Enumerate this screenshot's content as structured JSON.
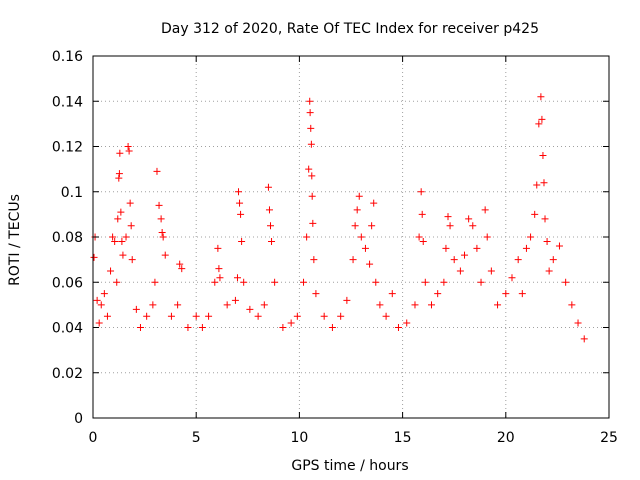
{
  "chart_data": {
    "type": "scatter",
    "title": "Day 312 of 2020, Rate Of TEC Index for receiver p425",
    "xlabel": "GPS time / hours",
    "ylabel": "ROTI / TECUs",
    "xlim": [
      0,
      25
    ],
    "ylim": [
      0,
      0.16
    ],
    "xticks": [
      "0",
      "5",
      "10",
      "15",
      "20",
      "25"
    ],
    "yticks": [
      "0",
      "0.02",
      "0.04",
      "0.06",
      "0.08",
      "0.1",
      "0.12",
      "0.14",
      "0.16"
    ],
    "grid": true,
    "marker": "plus",
    "series": [
      {
        "color": "#ff0000",
        "points": [
          [
            0.05,
            0.071
          ],
          [
            0.1,
            0.08
          ],
          [
            0.2,
            0.052
          ],
          [
            0.3,
            0.042
          ],
          [
            0.4,
            0.05
          ],
          [
            0.55,
            0.055
          ],
          [
            0.7,
            0.045
          ],
          [
            0.85,
            0.065
          ],
          [
            0.95,
            0.08
          ],
          [
            1.05,
            0.078
          ],
          [
            1.15,
            0.06
          ],
          [
            1.2,
            0.088
          ],
          [
            1.25,
            0.106
          ],
          [
            1.28,
            0.108
          ],
          [
            1.3,
            0.117
          ],
          [
            1.35,
            0.091
          ],
          [
            1.4,
            0.078
          ],
          [
            1.45,
            0.072
          ],
          [
            1.6,
            0.08
          ],
          [
            1.7,
            0.12
          ],
          [
            1.75,
            0.118
          ],
          [
            1.8,
            0.095
          ],
          [
            1.85,
            0.085
          ],
          [
            1.9,
            0.07
          ],
          [
            2.1,
            0.048
          ],
          [
            2.3,
            0.04
          ],
          [
            2.6,
            0.045
          ],
          [
            2.9,
            0.05
          ],
          [
            3.0,
            0.06
          ],
          [
            3.1,
            0.109
          ],
          [
            3.2,
            0.094
          ],
          [
            3.3,
            0.088
          ],
          [
            3.35,
            0.082
          ],
          [
            3.4,
            0.08
          ],
          [
            3.5,
            0.072
          ],
          [
            3.8,
            0.045
          ],
          [
            4.1,
            0.05
          ],
          [
            4.2,
            0.068
          ],
          [
            4.3,
            0.066
          ],
          [
            4.6,
            0.04
          ],
          [
            5.0,
            0.045
          ],
          [
            5.3,
            0.04
          ],
          [
            5.6,
            0.045
          ],
          [
            5.9,
            0.06
          ],
          [
            6.05,
            0.075
          ],
          [
            6.1,
            0.066
          ],
          [
            6.15,
            0.062
          ],
          [
            6.5,
            0.05
          ],
          [
            6.9,
            0.052
          ],
          [
            7.0,
            0.062
          ],
          [
            7.05,
            0.1
          ],
          [
            7.1,
            0.095
          ],
          [
            7.15,
            0.09
          ],
          [
            7.2,
            0.078
          ],
          [
            7.3,
            0.06
          ],
          [
            7.6,
            0.048
          ],
          [
            8.0,
            0.045
          ],
          [
            8.3,
            0.05
          ],
          [
            8.5,
            0.102
          ],
          [
            8.55,
            0.092
          ],
          [
            8.6,
            0.085
          ],
          [
            8.65,
            0.078
          ],
          [
            8.8,
            0.06
          ],
          [
            9.2,
            0.04
          ],
          [
            9.6,
            0.042
          ],
          [
            9.9,
            0.045
          ],
          [
            10.2,
            0.06
          ],
          [
            10.35,
            0.08
          ],
          [
            10.45,
            0.11
          ],
          [
            10.5,
            0.14
          ],
          [
            10.52,
            0.135
          ],
          [
            10.55,
            0.128
          ],
          [
            10.58,
            0.121
          ],
          [
            10.6,
            0.107
          ],
          [
            10.62,
            0.098
          ],
          [
            10.65,
            0.086
          ],
          [
            10.7,
            0.07
          ],
          [
            10.8,
            0.055
          ],
          [
            11.2,
            0.045
          ],
          [
            11.6,
            0.04
          ],
          [
            12.0,
            0.045
          ],
          [
            12.3,
            0.052
          ],
          [
            12.6,
            0.07
          ],
          [
            12.7,
            0.085
          ],
          [
            12.8,
            0.092
          ],
          [
            12.9,
            0.098
          ],
          [
            13.0,
            0.08
          ],
          [
            13.2,
            0.075
          ],
          [
            13.4,
            0.068
          ],
          [
            13.5,
            0.085
          ],
          [
            13.6,
            0.095
          ],
          [
            13.7,
            0.06
          ],
          [
            13.9,
            0.05
          ],
          [
            14.2,
            0.045
          ],
          [
            14.5,
            0.055
          ],
          [
            14.8,
            0.04
          ],
          [
            15.2,
            0.042
          ],
          [
            15.6,
            0.05
          ],
          [
            15.8,
            0.08
          ],
          [
            15.9,
            0.1
          ],
          [
            15.95,
            0.09
          ],
          [
            16.0,
            0.078
          ],
          [
            16.1,
            0.06
          ],
          [
            16.4,
            0.05
          ],
          [
            16.7,
            0.055
          ],
          [
            17.0,
            0.06
          ],
          [
            17.1,
            0.075
          ],
          [
            17.2,
            0.089
          ],
          [
            17.3,
            0.085
          ],
          [
            17.5,
            0.07
          ],
          [
            17.8,
            0.065
          ],
          [
            18.0,
            0.072
          ],
          [
            18.2,
            0.088
          ],
          [
            18.4,
            0.085
          ],
          [
            18.6,
            0.075
          ],
          [
            18.8,
            0.06
          ],
          [
            19.0,
            0.092
          ],
          [
            19.1,
            0.08
          ],
          [
            19.3,
            0.065
          ],
          [
            19.6,
            0.05
          ],
          [
            20.0,
            0.055
          ],
          [
            20.3,
            0.062
          ],
          [
            20.6,
            0.07
          ],
          [
            20.8,
            0.055
          ],
          [
            21.0,
            0.075
          ],
          [
            21.2,
            0.08
          ],
          [
            21.4,
            0.09
          ],
          [
            21.5,
            0.103
          ],
          [
            21.6,
            0.13
          ],
          [
            21.7,
            0.142
          ],
          [
            21.75,
            0.132
          ],
          [
            21.8,
            0.116
          ],
          [
            21.85,
            0.104
          ],
          [
            21.9,
            0.088
          ],
          [
            22.0,
            0.078
          ],
          [
            22.1,
            0.065
          ],
          [
            22.3,
            0.07
          ],
          [
            22.6,
            0.076
          ],
          [
            22.9,
            0.06
          ],
          [
            23.2,
            0.05
          ],
          [
            23.5,
            0.042
          ],
          [
            23.8,
            0.035
          ]
        ]
      }
    ]
  }
}
